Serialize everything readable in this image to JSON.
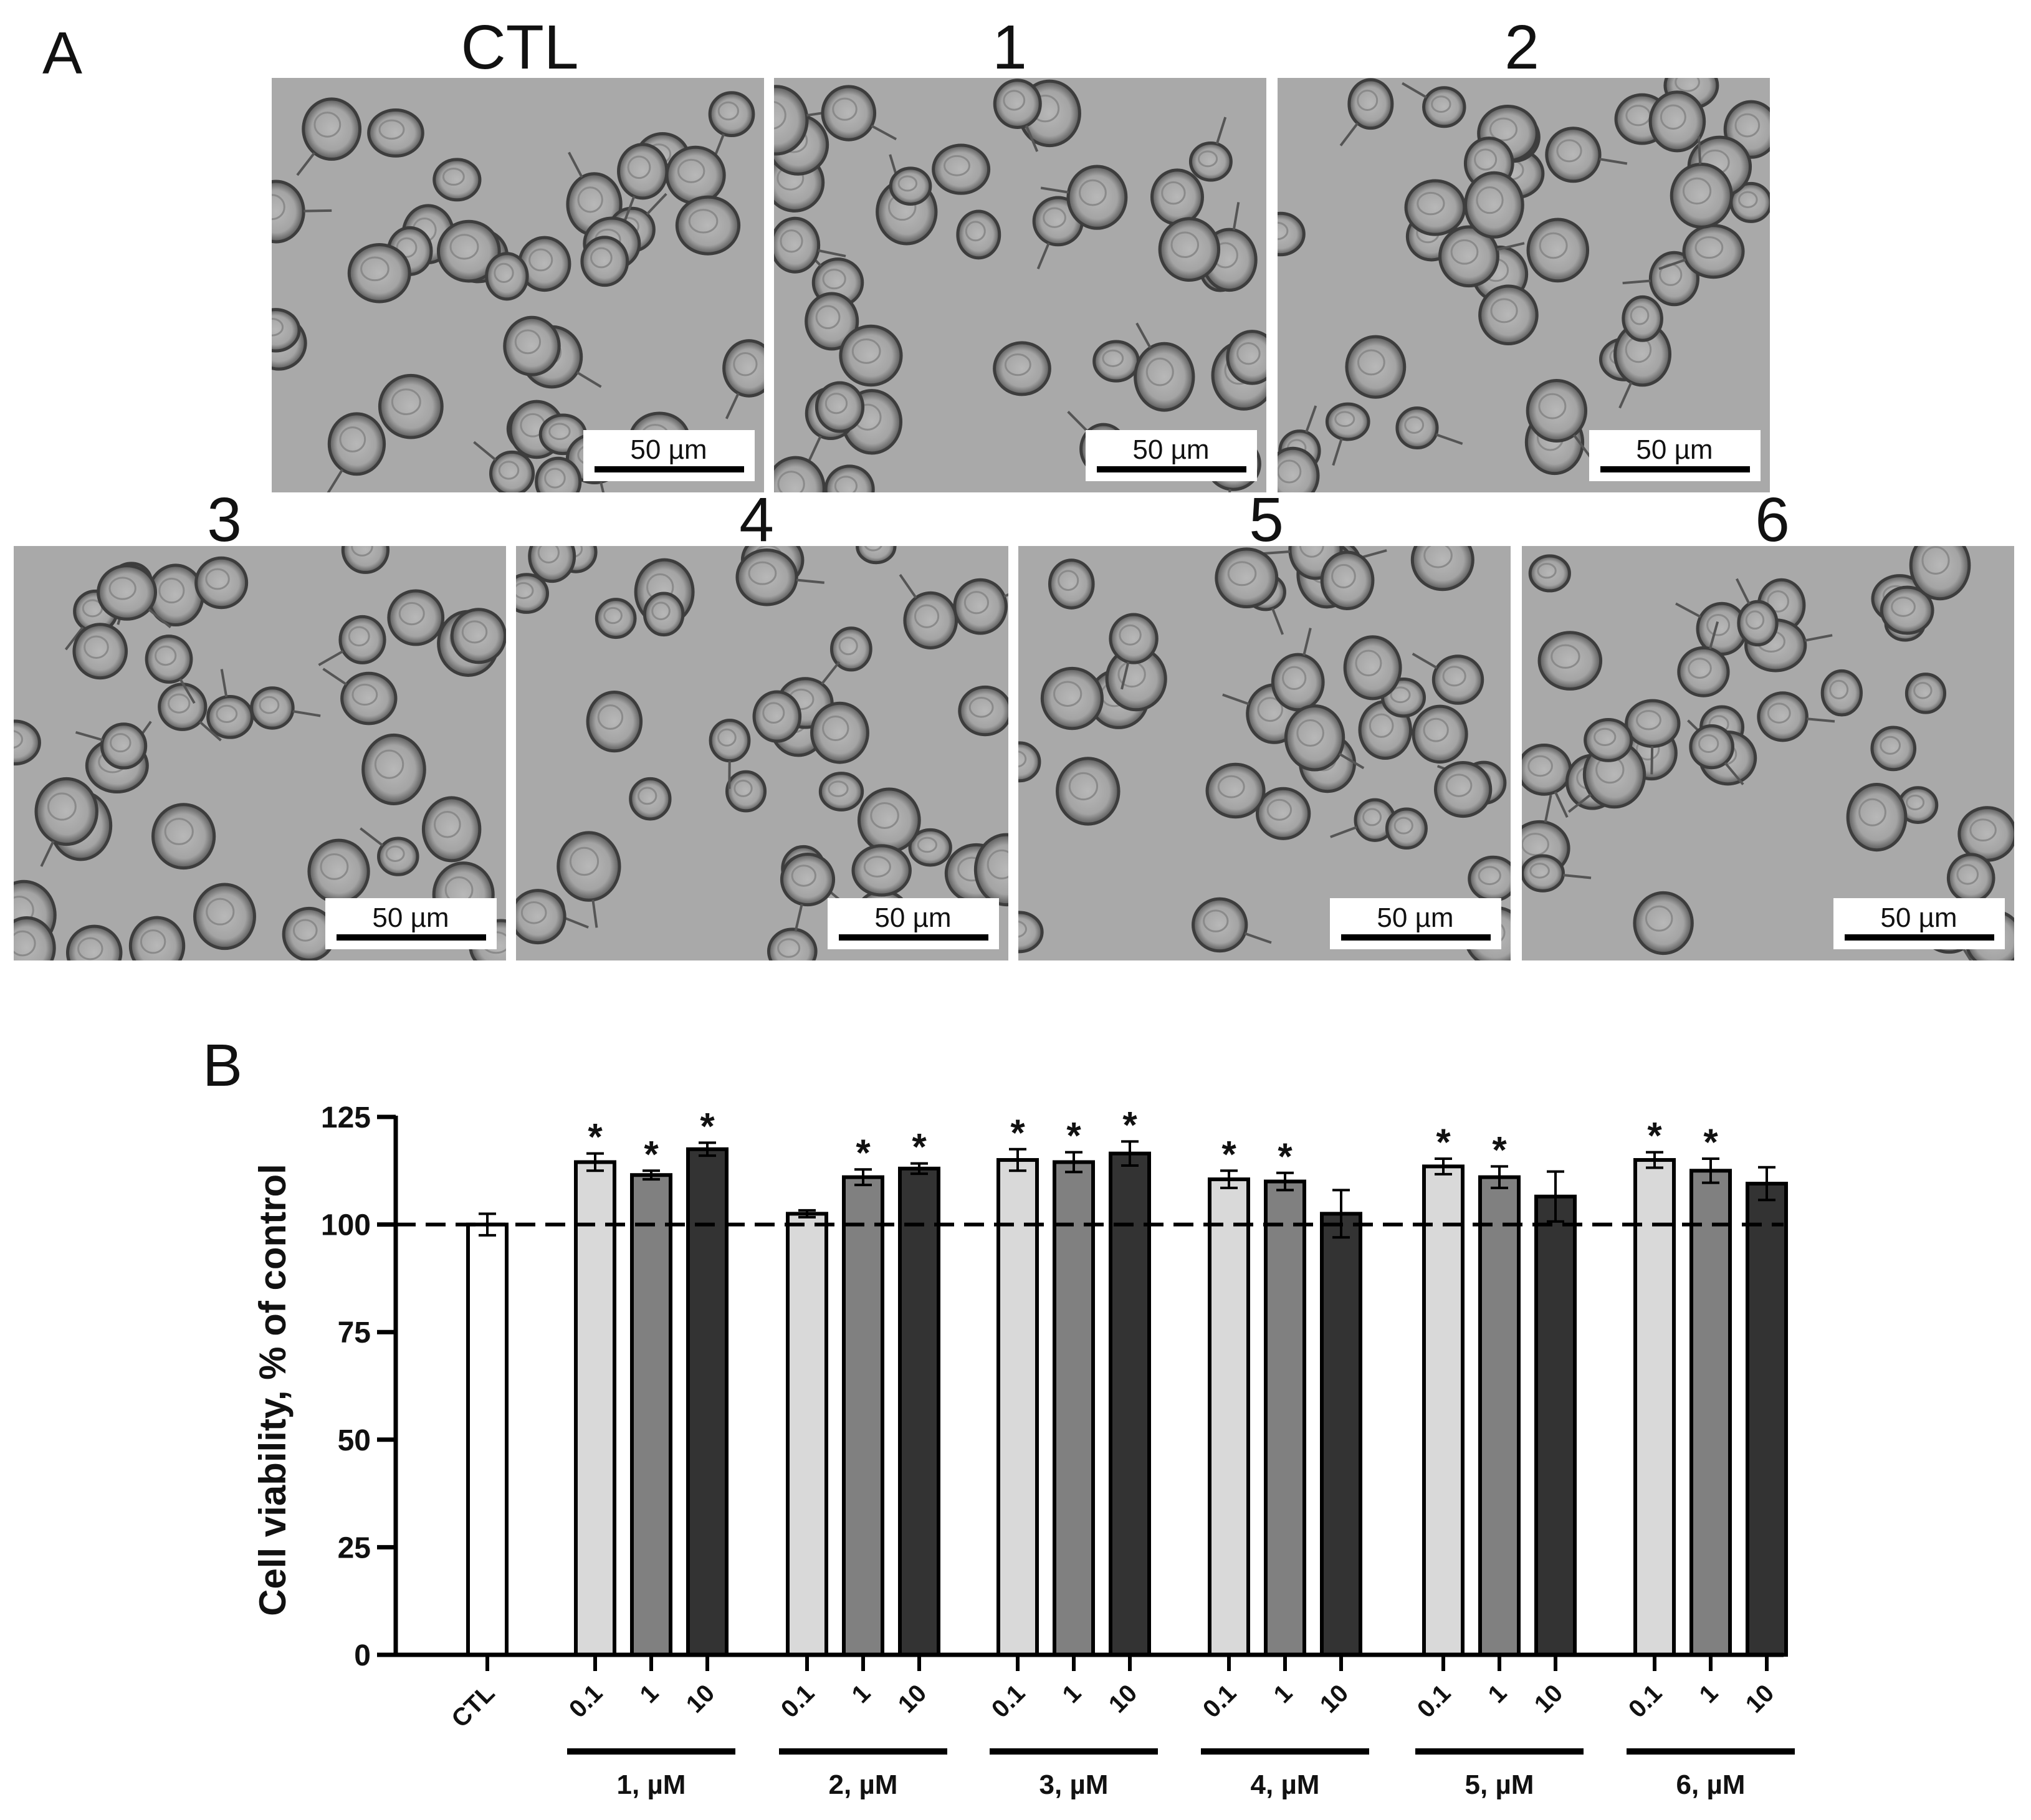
{
  "panel_a": {
    "letter": "A",
    "micrographs": [
      {
        "label": "CTL",
        "scale_bar": "50 µm"
      },
      {
        "label": "1",
        "scale_bar": "50 µm"
      },
      {
        "label": "2",
        "scale_bar": "50 µm"
      },
      {
        "label": "3",
        "scale_bar": "50 µm"
      },
      {
        "label": "4",
        "scale_bar": "50 µm"
      },
      {
        "label": "5",
        "scale_bar": "50 µm"
      },
      {
        "label": "6",
        "scale_bar": "50 µm"
      }
    ]
  },
  "panel_b": {
    "letter": "B"
  },
  "chart_data": {
    "type": "bar",
    "ylabel": "Cell viability, % of control",
    "ylim": [
      0,
      125
    ],
    "yticks": [
      0,
      25,
      50,
      75,
      100,
      125
    ],
    "reference_line": 100,
    "control": {
      "label": "CTL",
      "value": 100,
      "error": 2.5,
      "color": "#ffffff"
    },
    "concentrations": [
      "0.1",
      "1",
      "10"
    ],
    "concentration_colors": [
      "#d9d9d9",
      "#808080",
      "#333333"
    ],
    "groups": [
      {
        "label": "1, µM",
        "values": [
          114.5,
          111.5,
          117.5
        ],
        "errors": [
          2,
          1,
          1.5
        ],
        "significant": [
          true,
          true,
          true
        ]
      },
      {
        "label": "2, µM",
        "values": [
          102.5,
          111,
          113
        ],
        "errors": [
          0.8,
          1.8,
          1.2
        ],
        "significant": [
          false,
          true,
          true
        ]
      },
      {
        "label": "3, µM",
        "values": [
          115,
          114.5,
          116.5
        ],
        "errors": [
          2.5,
          2.3,
          2.8
        ],
        "significant": [
          true,
          true,
          true
        ]
      },
      {
        "label": "4, µM",
        "values": [
          110.5,
          110,
          102.5
        ],
        "errors": [
          2,
          2,
          5.5
        ],
        "significant": [
          true,
          true,
          false
        ]
      },
      {
        "label": "5, µM",
        "values": [
          113.5,
          111,
          106.5
        ],
        "errors": [
          1.8,
          2.5,
          5.8
        ],
        "significant": [
          true,
          true,
          false
        ]
      },
      {
        "label": "6, µM",
        "values": [
          115,
          112.5,
          109.5
        ],
        "errors": [
          1.8,
          2.8,
          3.8
        ],
        "significant": [
          true,
          true,
          false
        ]
      }
    ],
    "significance_marker": "*"
  }
}
